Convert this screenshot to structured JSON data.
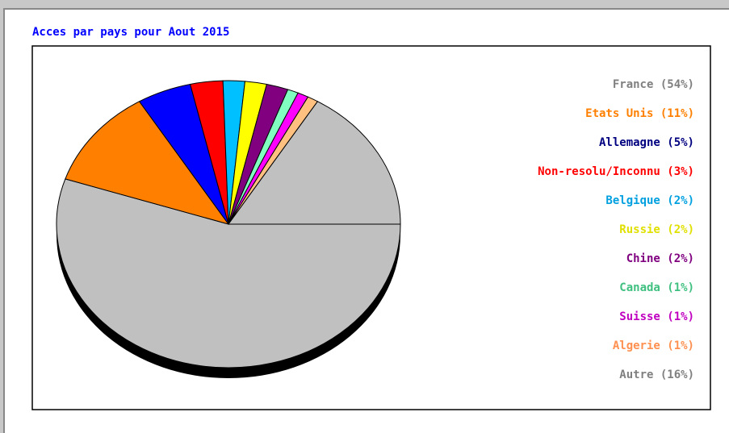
{
  "chart_data": {
    "type": "pie",
    "title": "Acces par pays pour Aout 2015",
    "categories": [
      "France (54%)",
      "Etats Unis (11%)",
      "Allemagne (5%)",
      "Non-resolu/Inconnu (3%)",
      "Belgique (2%)",
      "Russie (2%)",
      "Chine (2%)",
      "Canada (1%)",
      "Suisse (1%)",
      "Algerie (1%)",
      "Autre (16%)"
    ],
    "values": [
      54,
      11,
      5,
      3,
      2,
      2,
      2,
      1,
      1,
      1,
      16
    ],
    "colors": [
      "#c0c0c0",
      "#ff8000",
      "#0000ff",
      "#ff0000",
      "#00c0ff",
      "#ffff00",
      "#800080",
      "#80ffc0",
      "#ff00ff",
      "#ffc080",
      "#c0c0c0"
    ],
    "label_colors": [
      "#808080",
      "#ff8000",
      "#000080",
      "#ff0000",
      "#00a0e0",
      "#e0e000",
      "#800080",
      "#40c080",
      "#c000c0",
      "#ff9050",
      "#808080"
    ],
    "legend": "right"
  }
}
